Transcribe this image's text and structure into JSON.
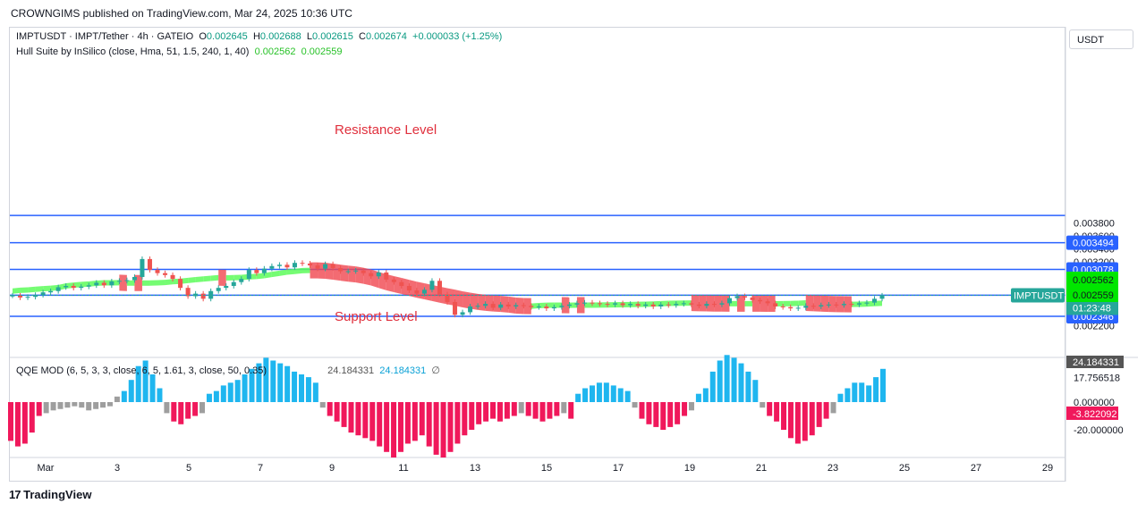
{
  "header": {
    "publisher": "CROWNGIMS published on TradingView.com, Mar 24, 2025 10:36 UTC"
  },
  "legend": {
    "symbol": "IMPTUSDT · IMPT/Tether · 4h · GATEIO",
    "open_label": "O",
    "open": "0.002645",
    "high_label": "H",
    "high": "0.002688",
    "low_label": "L",
    "low": "0.002615",
    "close_label": "C",
    "close": "0.002674",
    "change": "+0.000033 (+1.25%)",
    "indicator": "Hull Suite by InSilico (close, Hma, 51, 1.5, 240, 1, 40)",
    "hull_1": "0.002562",
    "hull_2": "0.002559"
  },
  "qqe_legend": {
    "name": "QQE MOD (6, 5, 3, 3, close, 6, 5, 1.61, 3, close, 50, 0.35)",
    "v1": "24.184331",
    "v2": "24.184331",
    "v3": "∅"
  },
  "annotations": {
    "resistance": "Resistance Level",
    "support": "Support Level"
  },
  "currency_button": "USDT",
  "footer": "TradingView",
  "price_axis": {
    "ticks": [
      {
        "v": 0.0038,
        "t": "0.003800"
      },
      {
        "v": 0.0036,
        "t": "0.003600"
      },
      {
        "v": 0.0034,
        "t": "0.003400"
      },
      {
        "v": 0.0032,
        "t": "0.003200"
      },
      {
        "v": 0.003,
        "t": "0.003000"
      },
      {
        "v": 0.0022,
        "t": "0.002200"
      }
    ],
    "badges": [
      {
        "v": 0.003494,
        "t": "0.003494",
        "color": "#2962ff"
      },
      {
        "v": 0.003078,
        "t": "0.003078",
        "color": "#2962ff"
      },
      {
        "v": 0.002675,
        "t": "0.002675",
        "color": "#2962ff"
      },
      {
        "v": 0.002346,
        "t": "0.002346",
        "color": "#2962ff"
      }
    ],
    "last_price": {
      "v": 0.002674,
      "t": "0.002674",
      "countdown": "01:23:48",
      "symbol": "IMPTUSDT",
      "color": "#26a69a"
    },
    "hull_badges": [
      {
        "t": "0.002562"
      },
      {
        "t": "0.002559"
      }
    ]
  },
  "qqe_axis": {
    "ticks": [
      {
        "v": 17.756518,
        "t": "17.756518"
      },
      {
        "v": -20,
        "t": "-20.000000"
      }
    ],
    "value_badge": {
      "v": 24.184331,
      "t": "24.184331"
    },
    "neg_badge": {
      "v": -3.822092,
      "t": "-3.822092"
    },
    "zero_label": "0.000000"
  },
  "time_axis": [
    "Mar",
    "3",
    "5",
    "7",
    "9",
    "11",
    "13",
    "15",
    "17",
    "19",
    "21",
    "23",
    "25",
    "27",
    "29"
  ],
  "chart_data": {
    "type": "candlestick",
    "interval": "4h",
    "horizontal_levels": [
      0.00392,
      0.003494,
      0.003078,
      0.002675,
      0.002346
    ],
    "ohlc_close_approx": [
      0.00267,
      0.00264,
      0.00265,
      0.00268,
      0.00272,
      0.00274,
      0.0028,
      0.00282,
      0.00279,
      0.00281,
      0.00283,
      0.00287,
      0.00283,
      0.00289,
      0.0029,
      0.00291,
      0.00296,
      0.00324,
      0.00307,
      0.00302,
      0.00299,
      0.00293,
      0.00279,
      0.00266,
      0.0027,
      0.00262,
      0.00274,
      0.00279,
      0.00282,
      0.00288,
      0.00293,
      0.00307,
      0.00302,
      0.00309,
      0.00313,
      0.00315,
      0.00311,
      0.00318,
      0.00317,
      0.00314,
      0.00309,
      0.00316,
      0.0031,
      0.00305,
      0.00305,
      0.00306,
      0.00302,
      0.00297,
      0.00303,
      0.00292,
      0.00288,
      0.00282,
      0.00275,
      0.0027,
      0.00276,
      0.0029,
      0.00269,
      0.00257,
      0.00237,
      0.00241,
      0.0025,
      0.00251,
      0.00254,
      0.00248,
      0.00253,
      0.0025,
      0.00252,
      0.00251,
      0.00249,
      0.0025,
      0.00247,
      0.00249,
      0.00251,
      0.00253,
      0.00255,
      0.00256,
      0.00255,
      0.00254,
      0.00253,
      0.00255,
      0.00252,
      0.00254,
      0.00251,
      0.00253,
      0.0025,
      0.00253,
      0.00252,
      0.00254,
      0.00255,
      0.00253,
      0.00251,
      0.00254,
      0.00253,
      0.00255,
      0.00263,
      0.00266,
      0.00264,
      0.0026,
      0.00258,
      0.00255,
      0.0025,
      0.00249,
      0.00247,
      0.00248,
      0.00251,
      0.0025,
      0.00252,
      0.00253,
      0.00252,
      0.00254,
      0.00253,
      0.00255,
      0.00256,
      0.00262,
      0.00267
    ],
    "qqe_histogram_approx": [
      -28,
      -32,
      -30,
      -22,
      -10,
      -8,
      -6,
      -5,
      -4,
      -3,
      -4,
      -6,
      -5,
      -4,
      -3,
      4,
      8,
      16,
      26,
      30,
      20,
      10,
      -8,
      -14,
      -16,
      -12,
      -10,
      -8,
      6,
      8,
      12,
      14,
      16,
      20,
      24,
      28,
      32,
      30,
      28,
      26,
      22,
      20,
      18,
      14,
      -4,
      -10,
      -14,
      -18,
      -22,
      -24,
      -26,
      -28,
      -32,
      -36,
      -40,
      -36,
      -30,
      -28,
      -24,
      -32,
      -38,
      -40,
      -36,
      -30,
      -24,
      -20,
      -16,
      -14,
      -12,
      -14,
      -12,
      -10,
      -8,
      -10,
      -12,
      -14,
      -12,
      -10,
      -8,
      -12,
      6,
      10,
      12,
      14,
      14,
      12,
      10,
      8,
      -4,
      -12,
      -16,
      -18,
      -20,
      -18,
      -16,
      -10,
      -6,
      6,
      10,
      22,
      30,
      34,
      32,
      28,
      22,
      16,
      -4,
      -10,
      -14,
      -20,
      -26,
      -30,
      -28,
      -24,
      -18,
      -12,
      -8,
      6,
      10,
      14,
      14,
      12,
      18,
      24
    ]
  }
}
